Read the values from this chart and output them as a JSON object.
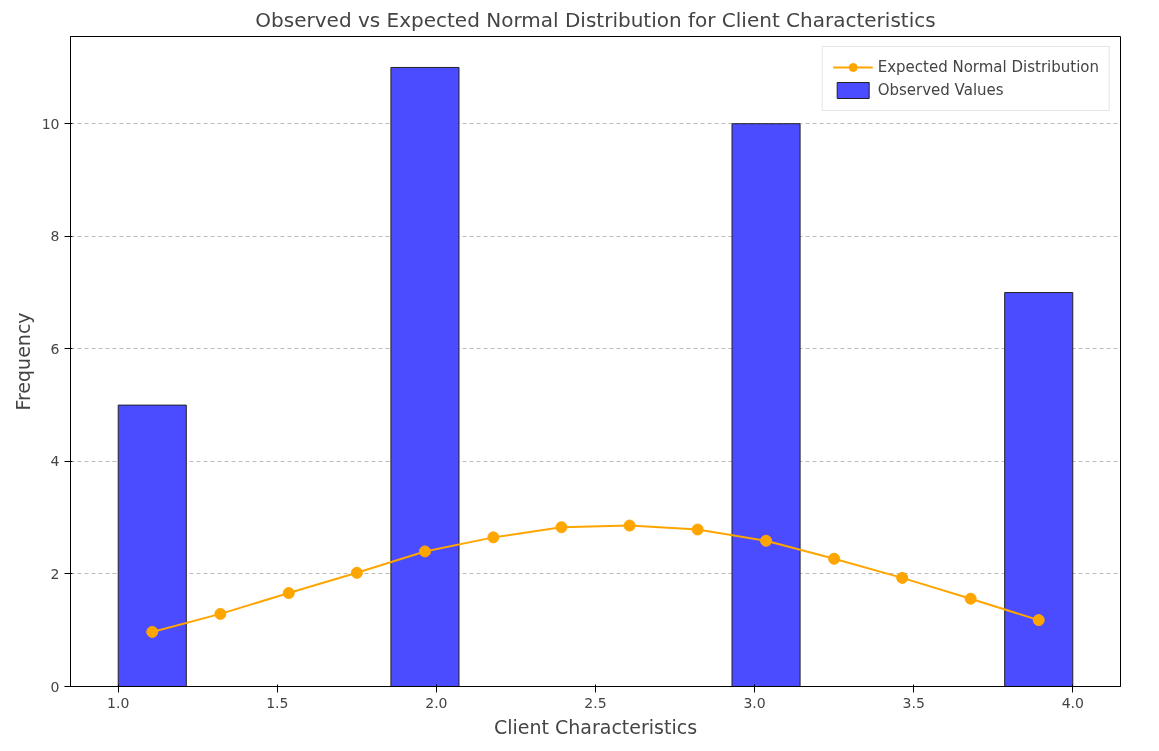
{
  "chart_data": {
    "type": "histogram",
    "title": "Observed vs Expected Normal Distribution for Client Characteristics",
    "xlabel": "Client Characteristics",
    "ylabel": "Frequency",
    "bins": [
      1.0,
      1.214,
      1.429,
      1.643,
      1.857,
      2.071,
      2.286,
      2.5,
      2.714,
      2.929,
      3.143,
      3.357,
      3.571,
      3.786,
      4.0
    ],
    "series": [
      {
        "name": "Expected Normal Distribution",
        "type": "line",
        "color": "#ffa500",
        "x": [
          1.107,
          1.321,
          1.536,
          1.75,
          1.964,
          2.179,
          2.393,
          2.607,
          2.821,
          3.036,
          3.25,
          3.464,
          3.679,
          3.893
        ],
        "values": [
          0.97,
          1.29,
          1.66,
          2.02,
          2.4,
          2.65,
          2.83,
          2.86,
          2.79,
          2.59,
          2.27,
          1.93,
          1.56,
          1.18
        ]
      },
      {
        "name": "Observed Values",
        "color": "#4b4bff",
        "values": [
          5,
          0,
          0,
          0,
          11,
          0,
          0,
          0,
          0,
          10,
          0,
          0,
          0,
          7
        ]
      }
    ],
    "xlim": [
      0.85,
      4.15
    ],
    "ylim": [
      0,
      11.55
    ],
    "xticks": [
      {
        "value": 1.0,
        "label": "1.0"
      },
      1.5,
      {
        "value": 2.0,
        "label": "2.0"
      },
      2.5,
      {
        "value": 3.0,
        "label": "3.0"
      },
      3.5,
      {
        "value": 4.0,
        "label": "4.0"
      }
    ],
    "yticks": [
      0,
      2,
      4,
      6,
      8,
      10
    ],
    "grid": "y",
    "legend": "top right",
    "marker": "circle",
    "line_style": "solid"
  }
}
